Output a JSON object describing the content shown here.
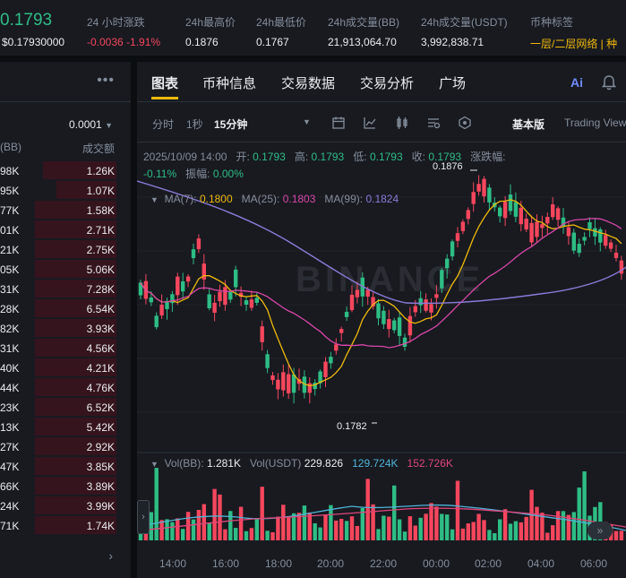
{
  "header": {
    "price": "0.1793",
    "price_usd": "$0.17930000",
    "stats": [
      {
        "label": "24 小时涨跌",
        "value": "-0.0036 -1.91%"
      },
      {
        "label": "24h最高价",
        "value": "0.1876"
      },
      {
        "label": "24h最低价",
        "value": "0.1767"
      },
      {
        "label": "24h成交量(BB)",
        "value": "21,913,064.70"
      },
      {
        "label": "24h成交量(USDT)",
        "value": "3,992,838.71"
      },
      {
        "label": "币种标签",
        "value": "一层/二层网络 | 种"
      }
    ]
  },
  "orderbook": {
    "more_icon": "more-horizontal-icon",
    "tick": "0.0001",
    "col_left": "(BB)",
    "col_right": "成交额",
    "rows": [
      {
        "left": "98K",
        "right": "1.26K",
        "fill": 0.85
      },
      {
        "left": "95K",
        "right": "1.07K",
        "fill": 0.7
      },
      {
        "left": "77K",
        "right": "1.58K",
        "fill": 0.95
      },
      {
        "left": "01K",
        "right": "2.71K",
        "fill": 0.95
      },
      {
        "left": "21K",
        "right": "2.75K",
        "fill": 0.95
      },
      {
        "left": "05K",
        "right": "5.06K",
        "fill": 0.95
      },
      {
        "left": "31K",
        "right": "7.28K",
        "fill": 0.95
      },
      {
        "left": "28K",
        "right": "6.54K",
        "fill": 0.95
      },
      {
        "left": "82K",
        "right": "3.93K",
        "fill": 0.95
      },
      {
        "left": "31K",
        "right": "4.56K",
        "fill": 0.95
      },
      {
        "left": "40K",
        "right": "4.21K",
        "fill": 0.95
      },
      {
        "left": "44K",
        "right": "4.76K",
        "fill": 0.95
      },
      {
        "left": "23K",
        "right": "6.52K",
        "fill": 0.95
      },
      {
        "left": "13K",
        "right": "5.42K",
        "fill": 0.95
      },
      {
        "left": "27K",
        "right": "2.92K",
        "fill": 0.95
      },
      {
        "left": "47K",
        "right": "3.85K",
        "fill": 0.95
      },
      {
        "left": "66K",
        "right": "3.89K",
        "fill": 0.95
      },
      {
        "left": "24K",
        "right": "3.99K",
        "fill": 0.95
      },
      {
        "left": "71K",
        "right": "1.74K",
        "fill": 0.95
      }
    ]
  },
  "tabs": [
    "图表",
    "币种信息",
    "交易数据",
    "交易分析",
    "广场"
  ],
  "toolbar": {
    "items": [
      "分时",
      "1秒",
      "15分钟"
    ],
    "mode": "基本版",
    "mode2": "Trading View"
  },
  "ohlc": {
    "date": "2025/10/09 14:00",
    "open_label": "开:",
    "open": "0.1793",
    "high_label": "高:",
    "high": "0.1793",
    "low_label": "低:",
    "low": "0.1793",
    "close_label": "收:",
    "close": "0.1793",
    "chg_label": "涨跌幅:",
    "chg": "-0.11%",
    "amp_label": "振幅:",
    "amp": "0.00%"
  },
  "ma": {
    "ma7_label": "MA(7):",
    "ma7": "0.1800",
    "ma25_label": "MA(25):",
    "ma25": "0.1803",
    "ma99_label": "MA(99):",
    "ma99": "0.1824"
  },
  "vol": {
    "bb_label": "Vol(BB):",
    "bb": "1.281K",
    "usdt_label": "Vol(USDT)",
    "usdt": "229.826",
    "v1": "129.724K",
    "v2": "152.726K"
  },
  "price_markers": {
    "high": "0.1876",
    "low": "0.1782"
  },
  "watermark": "BINANCE",
  "x_labels": [
    "14:00",
    "16:00",
    "18:00",
    "20:00",
    "22:00",
    "00:00",
    "02:00",
    "04:00",
    "06:00"
  ],
  "colors": {
    "up": "#2ebd85",
    "down": "#f6465d",
    "ma7": "#f0b90b",
    "ma25": "#d946a8",
    "ma99": "#8b7ad9",
    "vol_ma1": "#4fb4d8",
    "vol_ma2": "#e0457b"
  }
}
